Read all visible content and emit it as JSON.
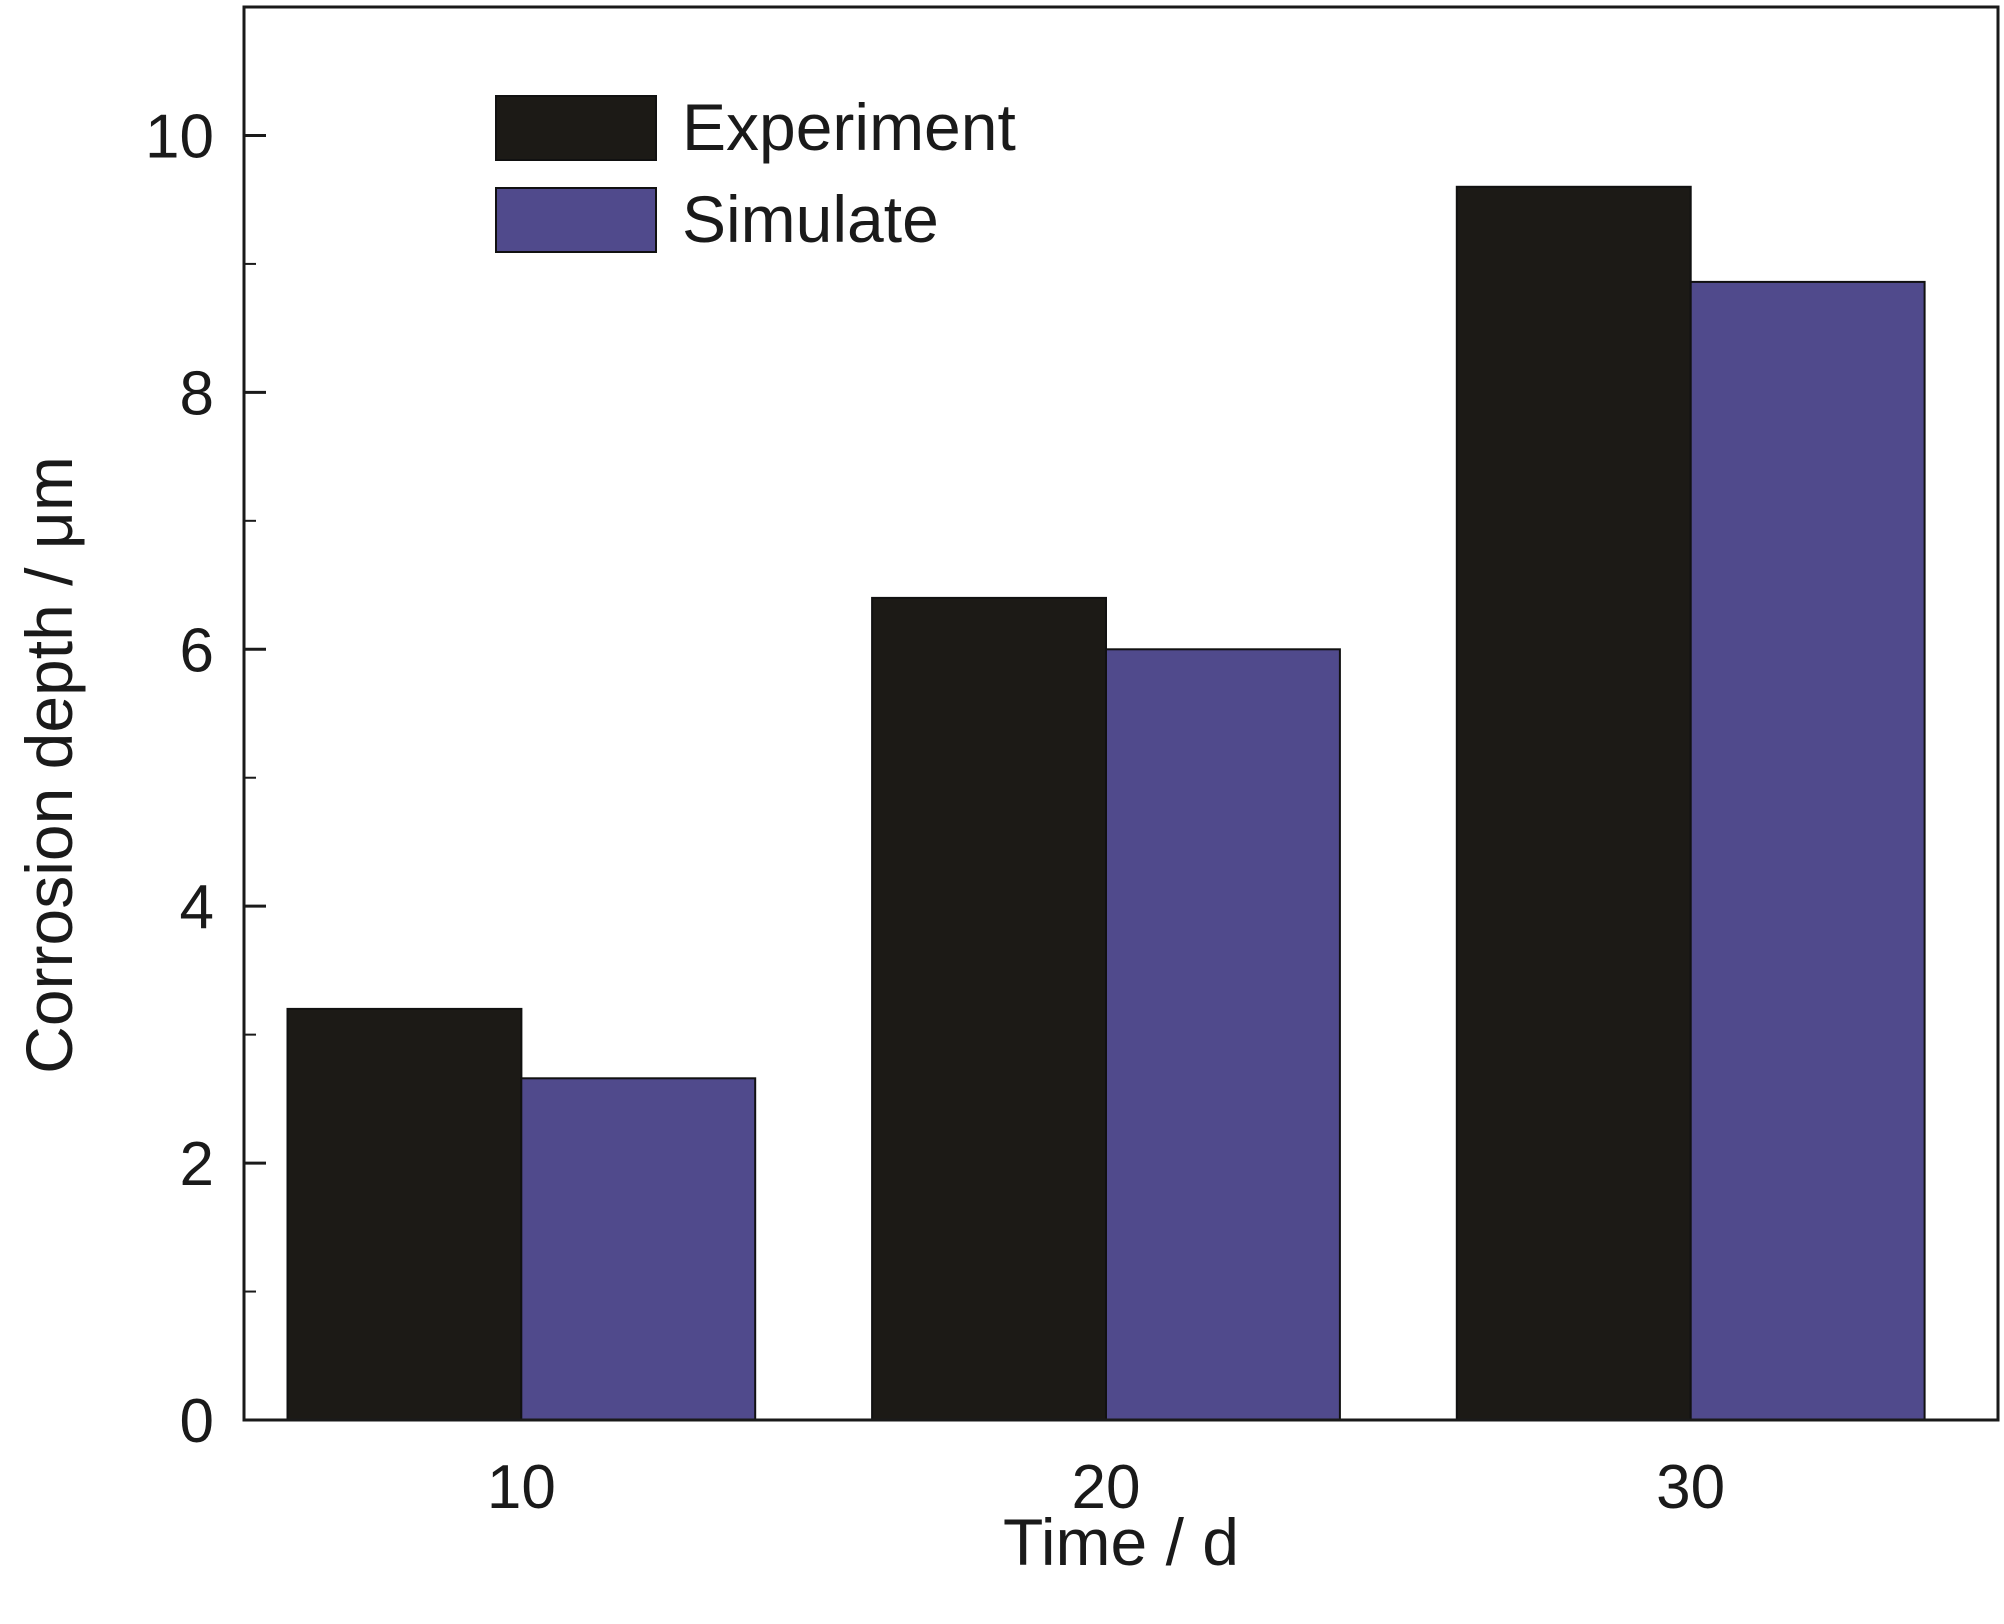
{
  "chart_data": {
    "type": "bar",
    "categories": [
      "10",
      "20",
      "30"
    ],
    "series": [
      {
        "name": "Experiment",
        "color": "#1c1a16",
        "values": [
          3.2,
          6.4,
          9.6
        ]
      },
      {
        "name": "Simulate",
        "color": "#504a8c",
        "values": [
          2.66,
          6.0,
          8.86
        ]
      }
    ],
    "xlabel": "Time / d",
    "ylabel": "Corrosion depth / μm",
    "ylim": [
      0,
      11
    ],
    "yticks": [
      0,
      2,
      4,
      6,
      8,
      10
    ],
    "grid": false,
    "legend_position": "top-left"
  }
}
